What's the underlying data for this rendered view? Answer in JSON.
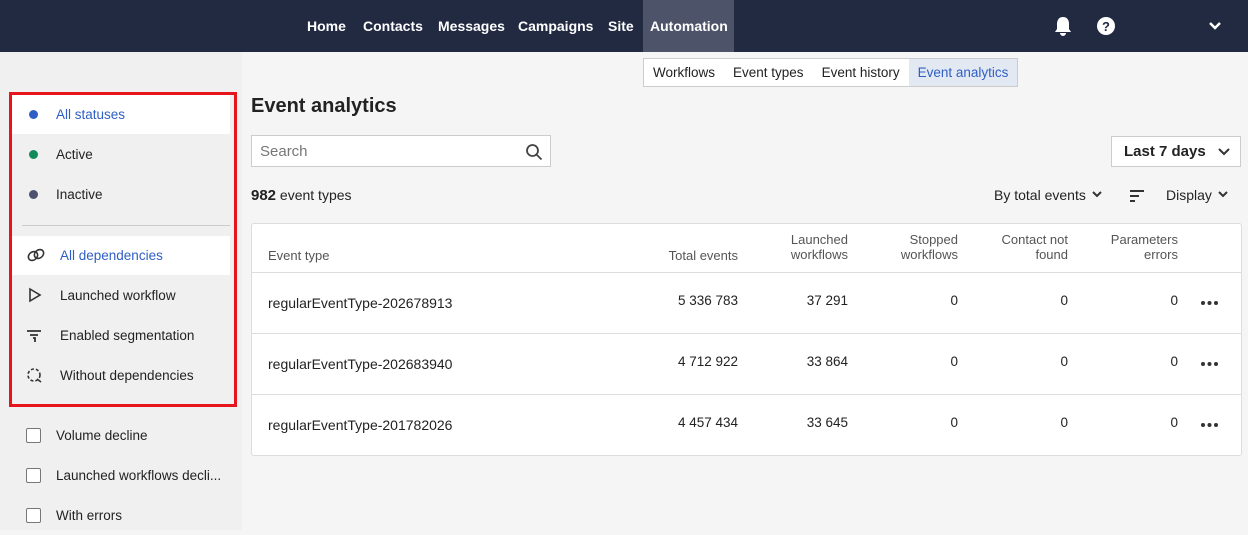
{
  "nav": {
    "items": [
      "Home",
      "Contacts",
      "Messages",
      "Campaigns",
      "Site",
      "Automation"
    ]
  },
  "tabs": [
    "Workflows",
    "Event types",
    "Event history",
    "Event analytics"
  ],
  "sidebar": {
    "statuses": [
      "All statuses",
      "Active",
      "Inactive"
    ],
    "dependencies": [
      "All dependencies",
      "Launched workflow",
      "Enabled segmentation",
      "Without dependencies"
    ],
    "filters": [
      "Volume decline",
      "Launched workflows decli...",
      "With errors"
    ]
  },
  "page": {
    "title": "Event analytics",
    "search_placeholder": "Search",
    "period": "Last 7 days",
    "count": 982,
    "count_label": "event types",
    "sort": "By total events",
    "display": "Display"
  },
  "table": {
    "columns": [
      "Event type",
      "Total events",
      "Launched workflows",
      "Stopped workflows",
      "Contact not found",
      "Parameters errors"
    ],
    "rows": [
      [
        "regularEventType-202678913",
        "5 336 783",
        "37 291",
        0,
        0,
        0
      ],
      [
        "regularEventType-202683940",
        "4 712 922",
        "33 864",
        0,
        0,
        0
      ],
      [
        "regularEventType-201782026",
        "4 457 434",
        "33 645",
        0,
        0,
        0
      ]
    ]
  }
}
